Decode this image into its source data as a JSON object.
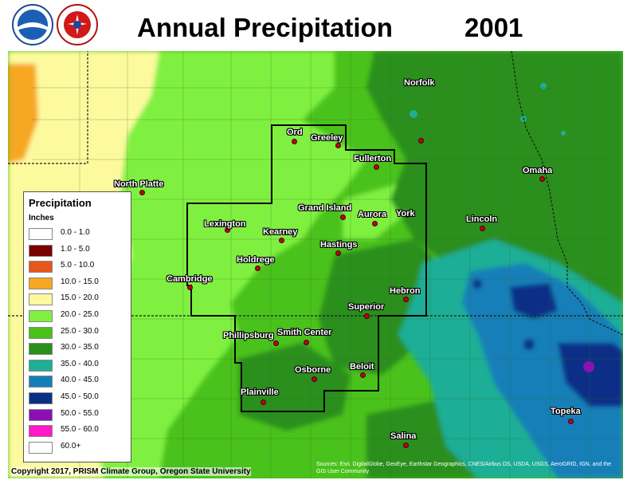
{
  "title": "Annual Precipitation",
  "year": "2001",
  "logos": {
    "left": "noaa-logo",
    "right": "national-weather-service-logo",
    "right_text": "NATIONAL WEATHER SERVICE"
  },
  "legend": {
    "title": "Precipitation",
    "units": "Inches",
    "items": [
      {
        "label": "0.0 - 1.0",
        "color": "#ffffff"
      },
      {
        "label": "1.0 - 5.0",
        "color": "#7a0000"
      },
      {
        "label": "5.0 - 10.0",
        "color": "#e8561a"
      },
      {
        "label": "10.0 - 15.0",
        "color": "#f7a722"
      },
      {
        "label": "15.0 - 20.0",
        "color": "#fdfa9e"
      },
      {
        "label": "20.0 - 25.0",
        "color": "#80f040"
      },
      {
        "label": "25.0 - 30.0",
        "color": "#4ac21c"
      },
      {
        "label": "30.0 - 35.0",
        "color": "#2a8f1c"
      },
      {
        "label": "35.0 - 40.0",
        "color": "#1fae96"
      },
      {
        "label": "40.0 - 45.0",
        "color": "#137fb8"
      },
      {
        "label": "45.0 - 50.0",
        "color": "#0c2f86"
      },
      {
        "label": "50.0 - 55.0",
        "color": "#8a10b6"
      },
      {
        "label": "55.0 - 60.0",
        "color": "#ff19c8"
      },
      {
        "label": "60.0+",
        "color": "#ffffff"
      }
    ]
  },
  "cities": [
    {
      "name": "Norfolk"
    },
    {
      "name": "Ord"
    },
    {
      "name": "Greeley"
    },
    {
      "name": "Fullerton"
    },
    {
      "name": "Omaha"
    },
    {
      "name": "North Platte"
    },
    {
      "name": "Grand Island"
    },
    {
      "name": "Aurora"
    },
    {
      "name": "York"
    },
    {
      "name": "Lincoln"
    },
    {
      "name": "Lexington"
    },
    {
      "name": "Kearney"
    },
    {
      "name": "Hastings"
    },
    {
      "name": "Holdrege"
    },
    {
      "name": "Cambridge"
    },
    {
      "name": "Hebron"
    },
    {
      "name": "Superior"
    },
    {
      "name": "Phillipsburg"
    },
    {
      "name": "Smith Center"
    },
    {
      "name": "Beloit"
    },
    {
      "name": "Osborne"
    },
    {
      "name": "Plainville"
    },
    {
      "name": "Topeka"
    },
    {
      "name": "Salina"
    }
  ],
  "copyright": "Copyright 2017, PRISM Climate Group, Oregon State University",
  "sources": "Sources: Esri, DigitalGlobe, GeoEye, Earthstar Geographics, CNES/Airbus DS, USDA, USGS, AeroGRID, IGN, and the GIS User Community"
}
